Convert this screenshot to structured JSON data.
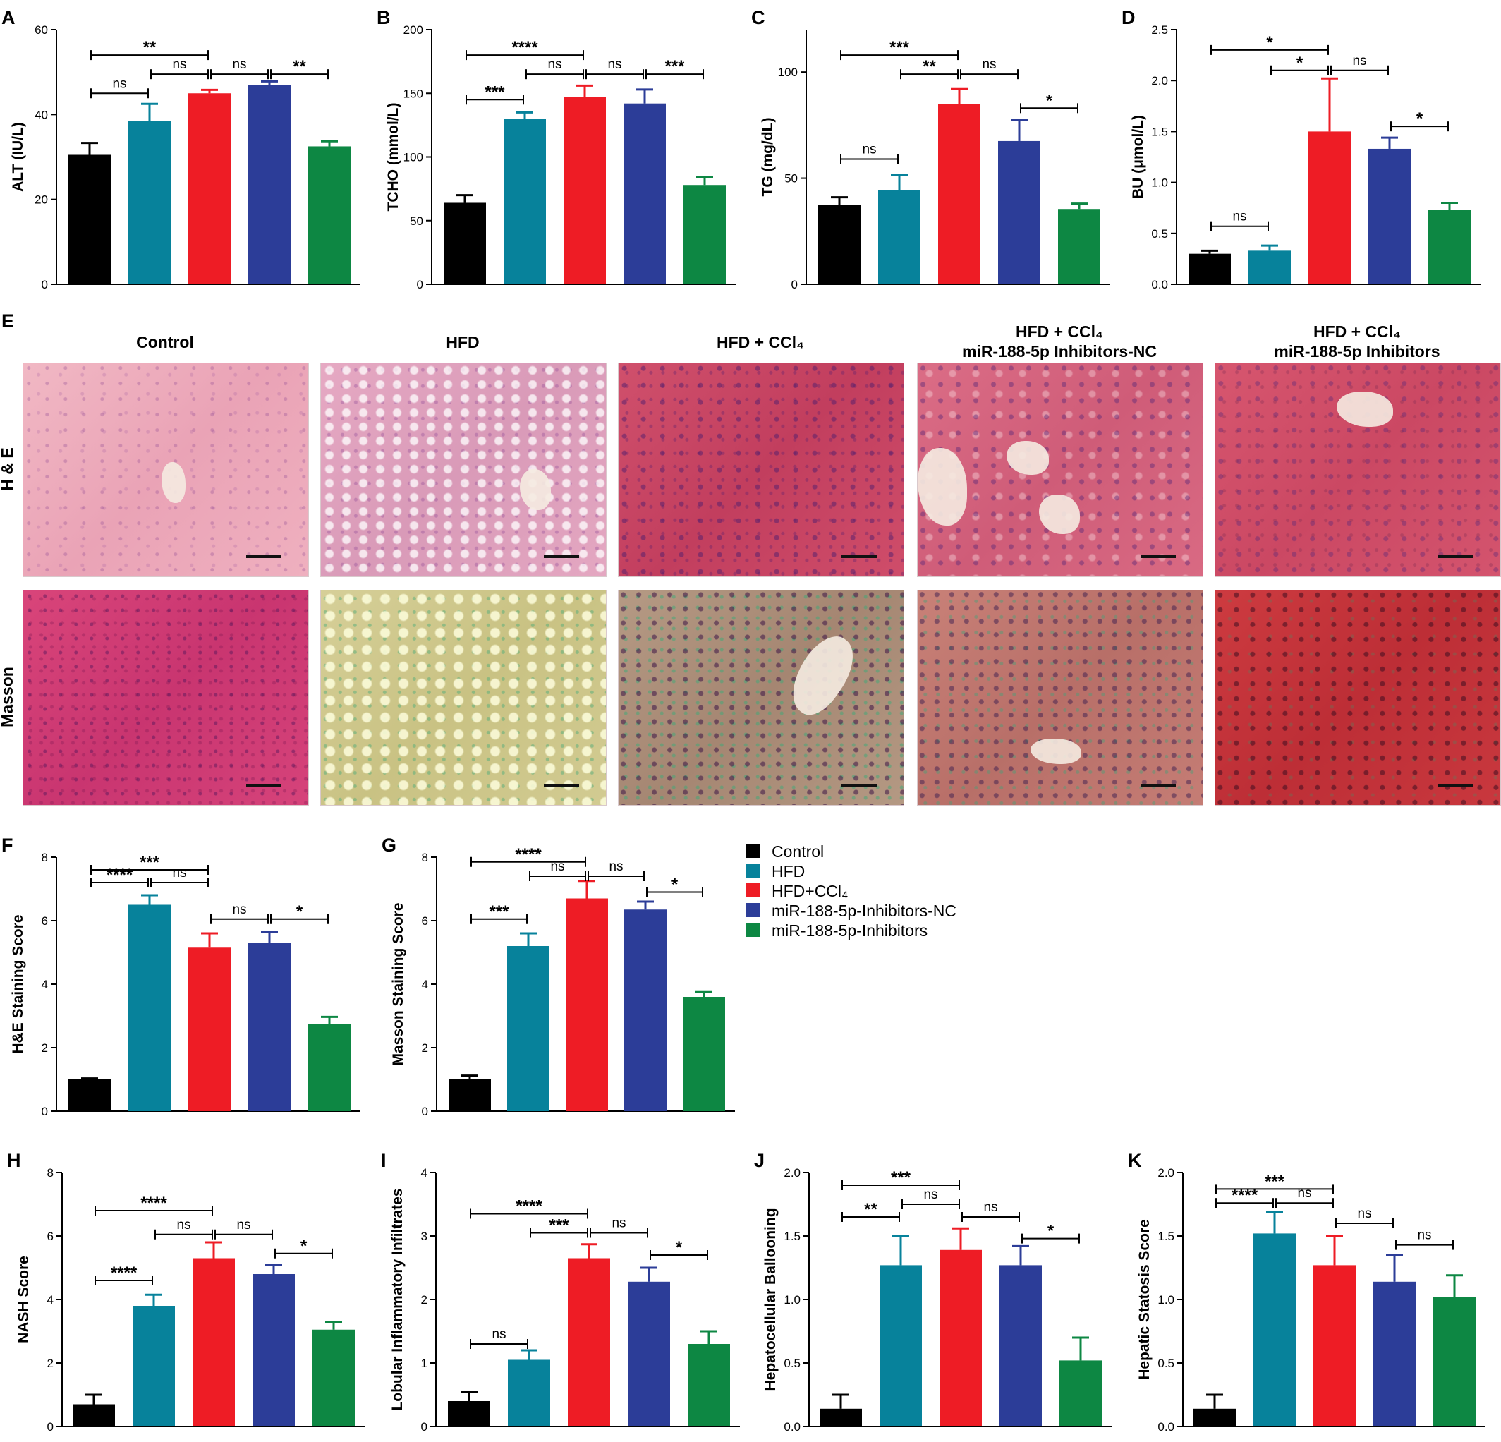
{
  "legend": {
    "entries": [
      {
        "label": "Control",
        "color": "#000000"
      },
      {
        "label": "HFD",
        "color": "#07829b"
      },
      {
        "label": "HFD+CCl₄",
        "color": "#ee1c25"
      },
      {
        "label": "miR-188-5p-Inhibitors-NC",
        "color": "#2c3d98"
      },
      {
        "label": "miR-188-5p-Inhibitors",
        "color": "#0d8743"
      }
    ]
  },
  "histology": {
    "panel_letter": "E",
    "columns": [
      {
        "line1": "Control",
        "line2": ""
      },
      {
        "line1": "HFD",
        "line2": ""
      },
      {
        "line1": "HFD + CCl₄",
        "line2": ""
      },
      {
        "line1": "HFD + CCl₄",
        "line2": "miR-188-5p Inhibitors-NC"
      },
      {
        "line1": "HFD + CCl₄",
        "line2": "miR-188-5p Inhibitors"
      }
    ],
    "rows": [
      {
        "label": "H & E",
        "stain": "he"
      },
      {
        "label": "Masson",
        "stain": "ms"
      }
    ]
  },
  "chart_data": [
    {
      "panel": "A",
      "type": "bar",
      "ylabel": "ALT (IU/L)",
      "ylim": [
        0,
        60
      ],
      "yticks": [
        "0",
        "20",
        "40",
        "60"
      ],
      "values": [
        30.5,
        38.5,
        45,
        47,
        32.5
      ],
      "errors": [
        2.8,
        4,
        0.8,
        0.8,
        1.2
      ],
      "brackets": [
        {
          "from": 0,
          "to": 2,
          "label": "**",
          "y": 54
        },
        {
          "from": 0,
          "to": 1,
          "label": "ns",
          "y": 45
        },
        {
          "from": 1,
          "to": 2,
          "label": "ns",
          "y": 49.5
        },
        {
          "from": 2,
          "to": 3,
          "label": "ns",
          "y": 49.5
        },
        {
          "from": 3,
          "to": 4,
          "label": "**",
          "y": 49.5
        }
      ]
    },
    {
      "panel": "B",
      "type": "bar",
      "ylabel": "TCHO (mmol/L)",
      "ylim": [
        0,
        200
      ],
      "yticks": [
        "0",
        "50",
        "100",
        "150",
        "200"
      ],
      "values": [
        64,
        130,
        147,
        142,
        78
      ],
      "errors": [
        6,
        5,
        9,
        11,
        6
      ],
      "brackets": [
        {
          "from": 0,
          "to": 2,
          "label": "****",
          "y": 180
        },
        {
          "from": 0,
          "to": 1,
          "label": "***",
          "y": 145
        },
        {
          "from": 1,
          "to": 2,
          "label": "ns",
          "y": 165
        },
        {
          "from": 2,
          "to": 3,
          "label": "ns",
          "y": 165
        },
        {
          "from": 3,
          "to": 4,
          "label": "***",
          "y": 165
        }
      ]
    },
    {
      "panel": "C",
      "type": "bar",
      "ylabel": "TG (mg/dL)",
      "ylim": [
        0,
        120
      ],
      "yticks": [
        "0",
        "50",
        "100"
      ],
      "values": [
        37.5,
        44.5,
        85,
        67.5,
        35.5
      ],
      "errors": [
        3.5,
        7,
        7,
        10,
        2.5
      ],
      "brackets": [
        {
          "from": 0,
          "to": 2,
          "label": "***",
          "y": 108
        },
        {
          "from": 0,
          "to": 1,
          "label": "ns",
          "y": 59
        },
        {
          "from": 1,
          "to": 2,
          "label": "**",
          "y": 99
        },
        {
          "from": 2,
          "to": 3,
          "label": "ns",
          "y": 99
        },
        {
          "from": 3,
          "to": 4,
          "label": "*",
          "y": 83
        }
      ]
    },
    {
      "panel": "D",
      "type": "bar",
      "ylabel": "BU (μmol/L)",
      "ylim": [
        0,
        2.5
      ],
      "yticks": [
        "0.0",
        "0.5",
        "1.0",
        "1.5",
        "2.0",
        "2.5"
      ],
      "values": [
        0.3,
        0.33,
        1.5,
        1.33,
        0.73
      ],
      "errors": [
        0.03,
        0.05,
        0.52,
        0.11,
        0.07
      ],
      "brackets": [
        {
          "from": 0,
          "to": 2,
          "label": "*",
          "y": 2.3
        },
        {
          "from": 0,
          "to": 1,
          "label": "ns",
          "y": 0.57
        },
        {
          "from": 1,
          "to": 2,
          "label": "*",
          "y": 2.1
        },
        {
          "from": 2,
          "to": 3,
          "label": "ns",
          "y": 2.1
        },
        {
          "from": 3,
          "to": 4,
          "label": "*",
          "y": 1.55
        }
      ]
    },
    {
      "panel": "F",
      "type": "bar",
      "ylabel": "H&E Staining Score",
      "ylim": [
        0,
        8
      ],
      "yticks": [
        "0",
        "2",
        "4",
        "6",
        "8"
      ],
      "values": [
        1,
        6.5,
        5.15,
        5.3,
        2.75
      ],
      "errors": [
        0.03,
        0.3,
        0.45,
        0.35,
        0.22
      ],
      "brackets": [
        {
          "from": 0,
          "to": 2,
          "label": "***",
          "y": 7.6
        },
        {
          "from": 0,
          "to": 1,
          "label": "****",
          "y": 7.2
        },
        {
          "from": 1,
          "to": 2,
          "label": "ns",
          "y": 7.2
        },
        {
          "from": 2,
          "to": 3,
          "label": "ns",
          "y": 6.05
        },
        {
          "from": 3,
          "to": 4,
          "label": "*",
          "y": 6.05
        }
      ]
    },
    {
      "panel": "G",
      "type": "bar",
      "ylabel": "Masson Staining Score",
      "ylim": [
        0,
        8
      ],
      "yticks": [
        "0",
        "2",
        "4",
        "6",
        "8"
      ],
      "values": [
        1,
        5.2,
        6.7,
        6.35,
        3.6
      ],
      "errors": [
        0.12,
        0.4,
        0.55,
        0.25,
        0.15
      ],
      "brackets": [
        {
          "from": 0,
          "to": 2,
          "label": "****",
          "y": 7.85
        },
        {
          "from": 0,
          "to": 1,
          "label": "***",
          "y": 6.05
        },
        {
          "from": 1,
          "to": 2,
          "label": "ns",
          "y": 7.4
        },
        {
          "from": 2,
          "to": 3,
          "label": "ns",
          "y": 7.4
        },
        {
          "from": 3,
          "to": 4,
          "label": "*",
          "y": 6.9
        }
      ]
    },
    {
      "panel": "H",
      "type": "bar",
      "ylabel": "NASH Score",
      "ylim": [
        0,
        8
      ],
      "yticks": [
        "0",
        "2",
        "4",
        "6",
        "8"
      ],
      "values": [
        0.7,
        3.8,
        5.3,
        4.8,
        3.05
      ],
      "errors": [
        0.3,
        0.35,
        0.5,
        0.3,
        0.25
      ],
      "brackets": [
        {
          "from": 0,
          "to": 2,
          "label": "****",
          "y": 6.8
        },
        {
          "from": 0,
          "to": 1,
          "label": "****",
          "y": 4.6
        },
        {
          "from": 1,
          "to": 2,
          "label": "ns",
          "y": 6.05
        },
        {
          "from": 2,
          "to": 3,
          "label": "ns",
          "y": 6.05
        },
        {
          "from": 3,
          "to": 4,
          "label": "*",
          "y": 5.45
        }
      ]
    },
    {
      "panel": "I",
      "type": "bar",
      "ylabel": "Lobular Inflammatory Infiltrates",
      "ylim": [
        0,
        4
      ],
      "yticks": [
        "0",
        "1",
        "2",
        "3",
        "4"
      ],
      "values": [
        0.4,
        1.05,
        2.65,
        2.28,
        1.3
      ],
      "errors": [
        0.15,
        0.15,
        0.22,
        0.22,
        0.2
      ],
      "brackets": [
        {
          "from": 0,
          "to": 2,
          "label": "****",
          "y": 3.35
        },
        {
          "from": 0,
          "to": 1,
          "label": "ns",
          "y": 1.3
        },
        {
          "from": 1,
          "to": 2,
          "label": "***",
          "y": 3.05
        },
        {
          "from": 2,
          "to": 3,
          "label": "ns",
          "y": 3.05
        },
        {
          "from": 3,
          "to": 4,
          "label": "*",
          "y": 2.7
        }
      ]
    },
    {
      "panel": "J",
      "type": "bar",
      "ylabel": "Hepatocellular Ballooning",
      "ylim": [
        0,
        2
      ],
      "yticks": [
        "0.0",
        "0.5",
        "1.0",
        "1.5",
        "2.0"
      ],
      "values": [
        0.14,
        1.27,
        1.39,
        1.27,
        0.52
      ],
      "errors": [
        0.11,
        0.23,
        0.17,
        0.15,
        0.18
      ],
      "brackets": [
        {
          "from": 0,
          "to": 2,
          "label": "***",
          "y": 1.9
        },
        {
          "from": 0,
          "to": 1,
          "label": "**",
          "y": 1.65
        },
        {
          "from": 1,
          "to": 2,
          "label": "ns",
          "y": 1.75
        },
        {
          "from": 2,
          "to": 3,
          "label": "ns",
          "y": 1.65
        },
        {
          "from": 3,
          "to": 4,
          "label": "*",
          "y": 1.48
        }
      ]
    },
    {
      "panel": "K",
      "type": "bar",
      "ylabel": "Hepatic Statosis Score",
      "ylim": [
        0,
        2
      ],
      "yticks": [
        "0.0",
        "0.5",
        "1.0",
        "1.5",
        "2.0"
      ],
      "values": [
        0.14,
        1.52,
        1.27,
        1.14,
        1.02
      ],
      "errors": [
        0.11,
        0.17,
        0.23,
        0.21,
        0.17
      ],
      "brackets": [
        {
          "from": 0,
          "to": 2,
          "label": "***",
          "y": 1.87
        },
        {
          "from": 0,
          "to": 1,
          "label": "****",
          "y": 1.76
        },
        {
          "from": 1,
          "to": 2,
          "label": "ns",
          "y": 1.76
        },
        {
          "from": 2,
          "to": 3,
          "label": "ns",
          "y": 1.6
        },
        {
          "from": 3,
          "to": 4,
          "label": "ns",
          "y": 1.43
        }
      ]
    }
  ]
}
